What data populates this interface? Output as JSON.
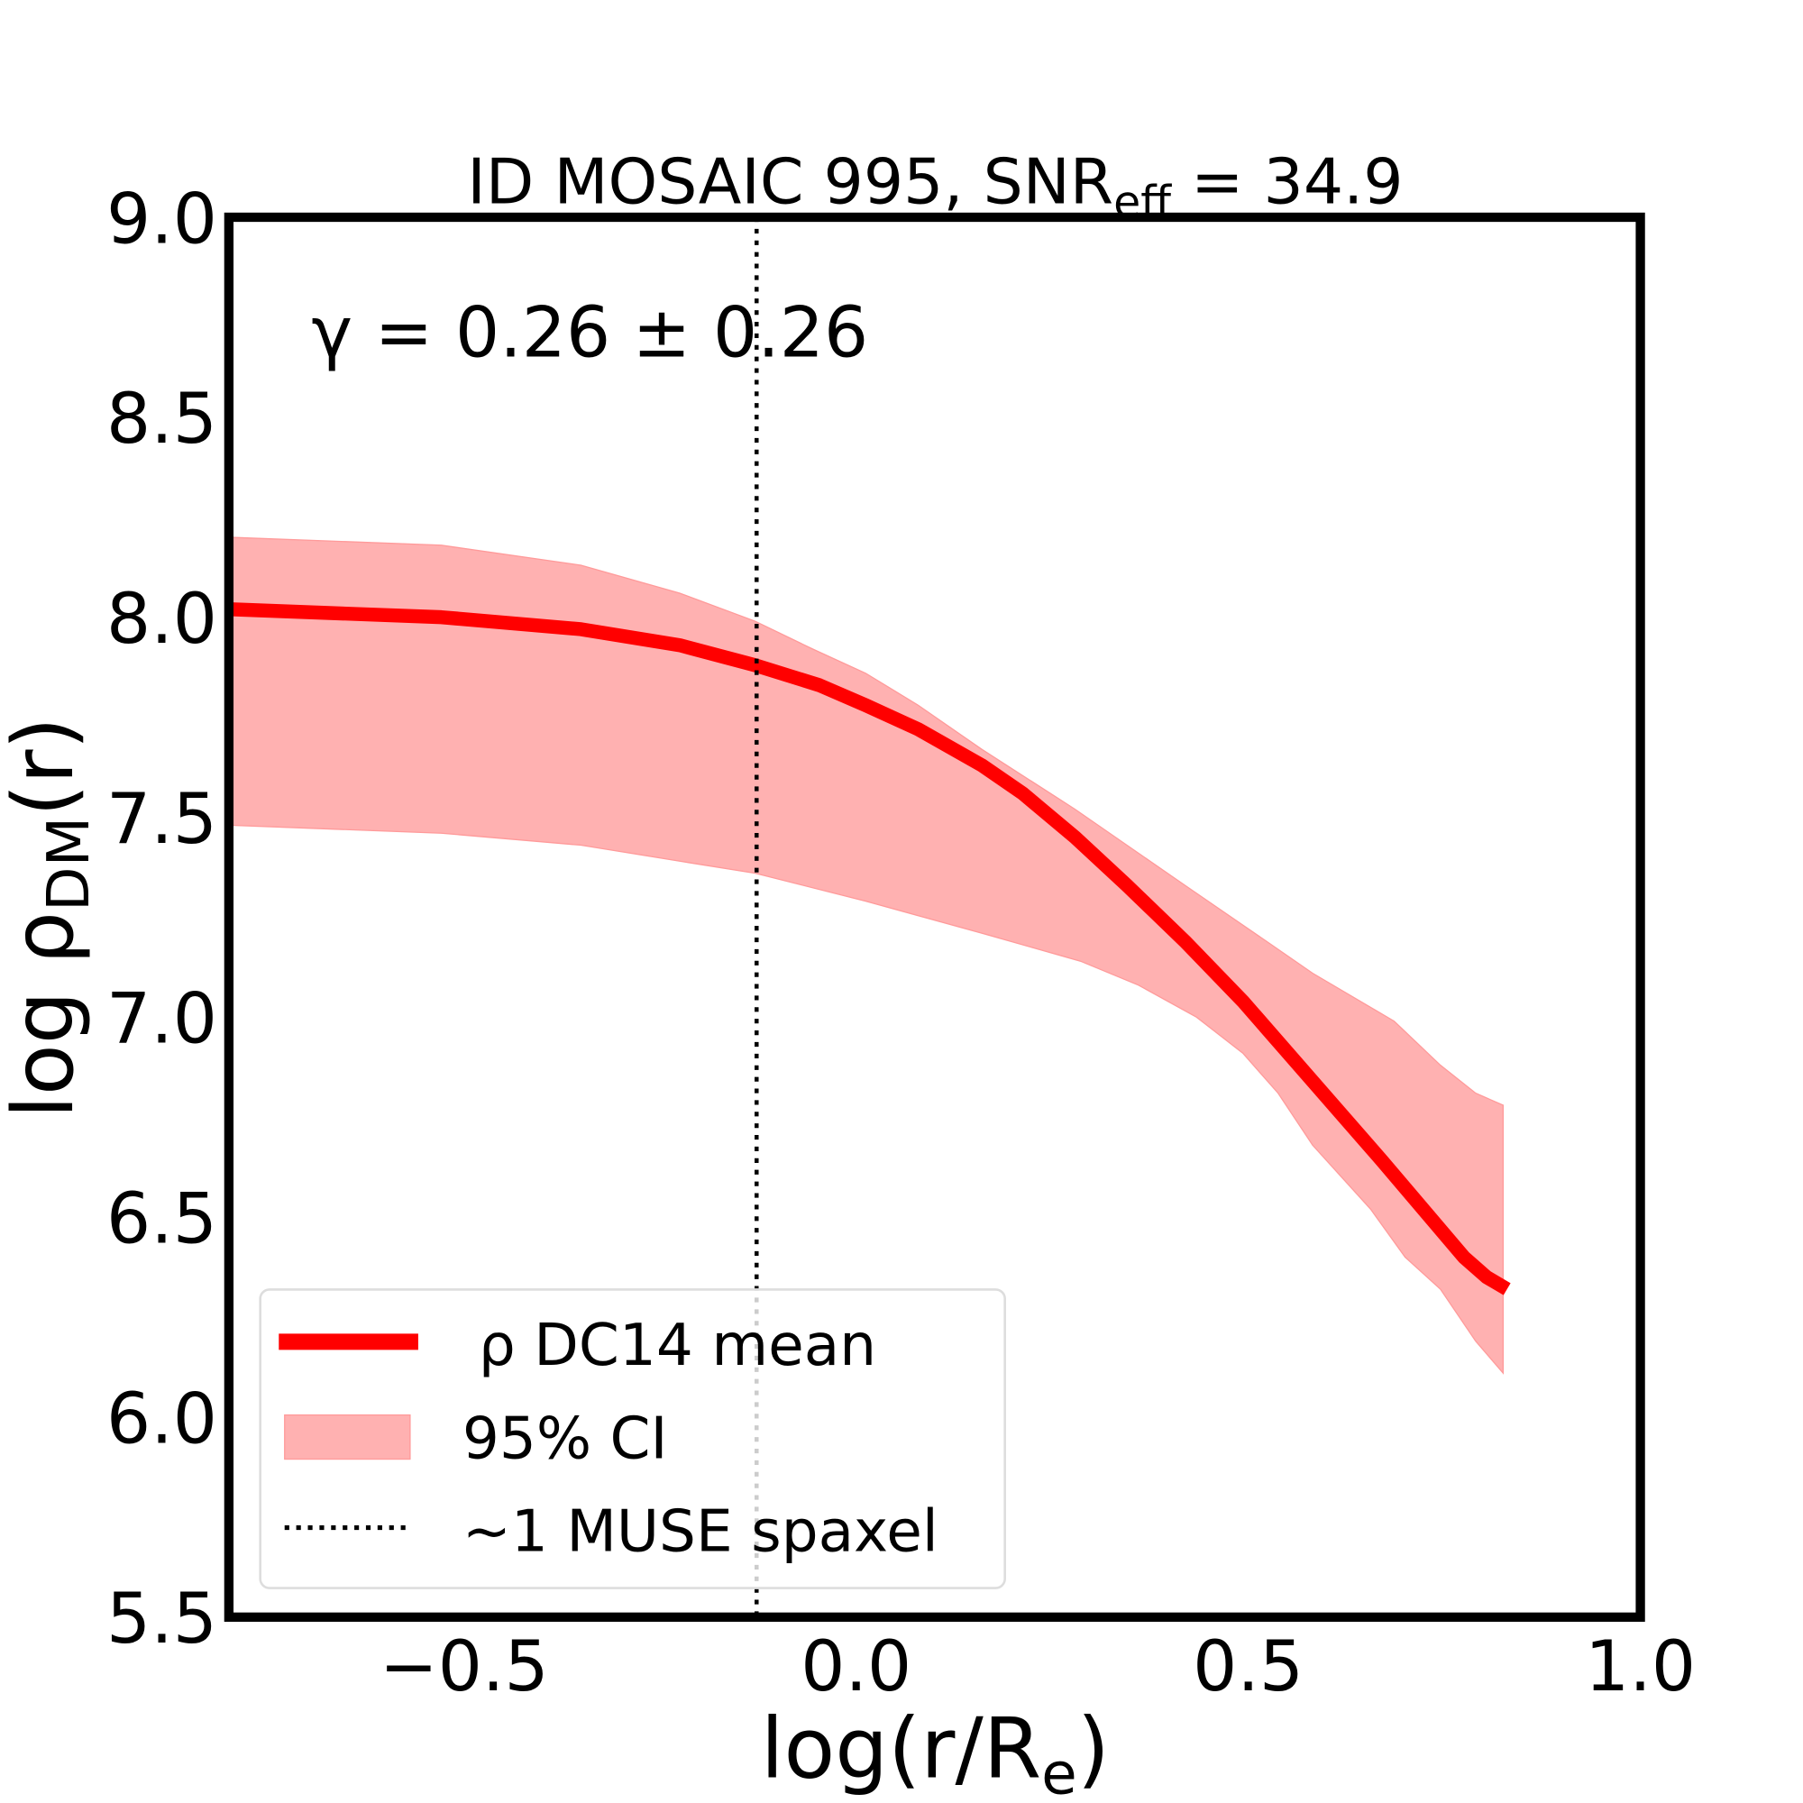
{
  "chart_data": {
    "type": "line",
    "title": "ID MOSAIC 995, SNR",
    "title_sub": "eff",
    "title_suffix": " = 34.9",
    "annotation": "γ = 0.26 ± 0.26",
    "xlabel": "log(r/R",
    "xlabel_sub": "e",
    "xlabel_suffix": ")",
    "ylabel": "log ρ",
    "ylabel_sub": "DM",
    "ylabel_suffix": "(r)",
    "xlim": [
      -0.8,
      1.0
    ],
    "ylim": [
      5.5,
      9.0
    ],
    "xticks": [
      -0.5,
      0.0,
      0.5,
      1.0
    ],
    "xtick_labels": [
      "−0.5",
      "0.0",
      "0.5",
      "1.0"
    ],
    "yticks": [
      5.5,
      6.0,
      6.5,
      7.0,
      7.5,
      8.0,
      8.5,
      9.0
    ],
    "ytick_labels": [
      "5.5",
      "6.0",
      "6.5",
      "7.0",
      "7.5",
      "8.0",
      "8.5",
      "9.0"
    ],
    "grid": false,
    "legend_placement": "lower-left",
    "mean": {
      "name": "ρ DC14 mean",
      "color": "#ff0000",
      "x": [
        -0.8,
        -0.529,
        -0.351,
        -0.225,
        -0.129,
        -0.047,
        0.012,
        0.079,
        0.16,
        0.212,
        0.279,
        0.345,
        0.419,
        0.493,
        0.582,
        0.671,
        0.775,
        0.804,
        0.83
      ],
      "y": [
        8.02,
        8.0,
        7.97,
        7.93,
        7.88,
        7.83,
        7.78,
        7.72,
        7.63,
        7.56,
        7.45,
        7.33,
        7.19,
        7.04,
        6.84,
        6.64,
        6.4,
        6.35,
        6.32
      ]
    },
    "ci": {
      "name": "95% CI",
      "color": "#ffb1b1",
      "upper_x": [
        -0.8,
        -0.529,
        -0.351,
        -0.225,
        -0.129,
        -0.055,
        0.012,
        0.079,
        0.16,
        0.279,
        0.419,
        0.523,
        0.582,
        0.686,
        0.745,
        0.79,
        0.825
      ],
      "upper_y": [
        8.2,
        8.18,
        8.13,
        8.06,
        7.99,
        7.92,
        7.86,
        7.78,
        7.67,
        7.52,
        7.33,
        7.19,
        7.11,
        6.99,
        6.88,
        6.81,
        6.78
      ],
      "lower_x": [
        -0.8,
        -0.529,
        -0.351,
        -0.225,
        -0.129,
        0.012,
        0.16,
        0.286,
        0.36,
        0.434,
        0.493,
        0.538,
        0.582,
        0.656,
        0.7,
        0.745,
        0.79,
        0.825
      ],
      "lower_y": [
        7.48,
        7.46,
        7.43,
        7.39,
        7.36,
        7.29,
        7.21,
        7.14,
        7.08,
        7.0,
        6.91,
        6.81,
        6.68,
        6.52,
        6.4,
        6.32,
        6.19,
        6.11
      ]
    },
    "vline": {
      "name": "~1 MUSE spaxel",
      "x": -0.127
    }
  }
}
